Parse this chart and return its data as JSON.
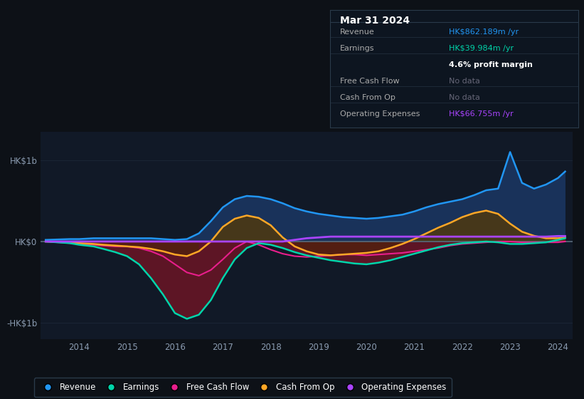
{
  "bg_color": "#0d1117",
  "plot_bg_color": "#111927",
  "title": "Mar 31 2024",
  "info_box": {
    "bg": "#0d1520",
    "border": "#2a3a4a",
    "rows": [
      {
        "label": "Revenue",
        "value": "HK$862.189m /yr",
        "value_color": "#2196f3"
      },
      {
        "label": "Earnings",
        "value": "HK$39.984m /yr",
        "value_color": "#00d4aa"
      },
      {
        "label": "",
        "value": "4.6% profit margin",
        "value_color": "#ffffff"
      },
      {
        "label": "Free Cash Flow",
        "value": "No data",
        "value_color": "#666677"
      },
      {
        "label": "Cash From Op",
        "value": "No data",
        "value_color": "#666677"
      },
      {
        "label": "Operating Expenses",
        "value": "HK$66.755m /yr",
        "value_color": "#aa44ff"
      }
    ]
  },
  "years": [
    2013.3,
    2013.8,
    2014.0,
    2014.3,
    2014.5,
    2014.75,
    2015.0,
    2015.25,
    2015.5,
    2015.75,
    2016.0,
    2016.25,
    2016.5,
    2016.75,
    2017.0,
    2017.25,
    2017.5,
    2017.75,
    2018.0,
    2018.25,
    2018.5,
    2018.75,
    2019.0,
    2019.25,
    2019.5,
    2019.75,
    2020.0,
    2020.25,
    2020.5,
    2020.75,
    2021.0,
    2021.25,
    2021.5,
    2021.75,
    2022.0,
    2022.25,
    2022.5,
    2022.75,
    2023.0,
    2023.25,
    2023.5,
    2023.75,
    2024.0,
    2024.15
  ],
  "revenue": [
    0.02,
    0.03,
    0.03,
    0.04,
    0.04,
    0.04,
    0.04,
    0.04,
    0.04,
    0.03,
    0.02,
    0.03,
    0.1,
    0.25,
    0.42,
    0.52,
    0.56,
    0.55,
    0.52,
    0.47,
    0.41,
    0.37,
    0.34,
    0.32,
    0.3,
    0.29,
    0.28,
    0.29,
    0.31,
    0.33,
    0.37,
    0.42,
    0.46,
    0.49,
    0.52,
    0.57,
    0.63,
    0.65,
    1.1,
    0.72,
    0.65,
    0.7,
    0.78,
    0.86
  ],
  "earnings": [
    0.0,
    -0.02,
    -0.04,
    -0.06,
    -0.09,
    -0.13,
    -0.18,
    -0.28,
    -0.45,
    -0.65,
    -0.88,
    -0.95,
    -0.9,
    -0.72,
    -0.45,
    -0.22,
    -0.08,
    -0.02,
    -0.04,
    -0.08,
    -0.13,
    -0.17,
    -0.2,
    -0.23,
    -0.25,
    -0.27,
    -0.28,
    -0.26,
    -0.23,
    -0.19,
    -0.15,
    -0.11,
    -0.07,
    -0.04,
    -0.02,
    -0.01,
    0.0,
    -0.01,
    -0.03,
    -0.03,
    -0.02,
    -0.01,
    0.02,
    0.04
  ],
  "free_cash_flow": [
    0.0,
    -0.02,
    -0.03,
    -0.04,
    -0.05,
    -0.06,
    -0.06,
    -0.08,
    -0.12,
    -0.18,
    -0.28,
    -0.38,
    -0.42,
    -0.35,
    -0.22,
    -0.08,
    0.0,
    -0.04,
    -0.1,
    -0.15,
    -0.18,
    -0.19,
    -0.18,
    -0.17,
    -0.16,
    -0.16,
    -0.17,
    -0.16,
    -0.15,
    -0.14,
    -0.12,
    -0.1,
    -0.08,
    -0.05,
    -0.03,
    -0.02,
    -0.01,
    0.0,
    0.0,
    -0.01,
    -0.01,
    -0.01,
    -0.01,
    0.0
  ],
  "cash_from_op": [
    0.0,
    -0.01,
    -0.02,
    -0.03,
    -0.04,
    -0.05,
    -0.06,
    -0.07,
    -0.09,
    -0.12,
    -0.16,
    -0.18,
    -0.12,
    0.0,
    0.18,
    0.28,
    0.32,
    0.29,
    0.2,
    0.05,
    -0.06,
    -0.12,
    -0.16,
    -0.17,
    -0.16,
    -0.15,
    -0.14,
    -0.12,
    -0.08,
    -0.03,
    0.03,
    0.1,
    0.17,
    0.23,
    0.3,
    0.35,
    0.38,
    0.34,
    0.22,
    0.12,
    0.07,
    0.04,
    0.04,
    0.05
  ],
  "operating_expenses": [
    0.0,
    0.0,
    0.0,
    0.0,
    0.0,
    0.0,
    0.0,
    0.0,
    0.0,
    0.0,
    0.0,
    0.0,
    0.0,
    0.0,
    0.0,
    0.0,
    0.0,
    0.0,
    0.0,
    0.0,
    0.02,
    0.04,
    0.05,
    0.06,
    0.06,
    0.06,
    0.06,
    0.06,
    0.06,
    0.06,
    0.06,
    0.06,
    0.06,
    0.06,
    0.06,
    0.06,
    0.06,
    0.06,
    0.06,
    0.06,
    0.06,
    0.06,
    0.067,
    0.067
  ],
  "revenue_color": "#2196f3",
  "earnings_color": "#00d4aa",
  "free_cash_flow_color": "#e91e8c",
  "cash_from_op_color": "#ffa726",
  "operating_expenses_color": "#aa44ff",
  "revenue_fill_pos": "#1a3560",
  "revenue_fill_neg": "#1a3560",
  "earnings_fill": "#6b1525",
  "cash_from_op_fill_pos": "#5a3a00",
  "cash_from_op_fill_neg": "#4a2800",
  "zero_line_color": "#5a6a7a",
  "grid_color": "#1a2535",
  "tick_label_color": "#8a9bb0",
  "ylim": [
    -1.2,
    1.35
  ],
  "ytick_labels": [
    "HK$1b",
    "HK$0",
    "-HK$1b"
  ],
  "ytick_positions": [
    1.0,
    0.0,
    -1.0
  ],
  "xtick_years": [
    2014,
    2015,
    2016,
    2017,
    2018,
    2019,
    2020,
    2021,
    2022,
    2023,
    2024
  ],
  "legend": [
    {
      "label": "Revenue",
      "color": "#2196f3"
    },
    {
      "label": "Earnings",
      "color": "#00d4aa"
    },
    {
      "label": "Free Cash Flow",
      "color": "#e91e8c"
    },
    {
      "label": "Cash From Op",
      "color": "#ffa726"
    },
    {
      "label": "Operating Expenses",
      "color": "#aa44ff"
    }
  ]
}
